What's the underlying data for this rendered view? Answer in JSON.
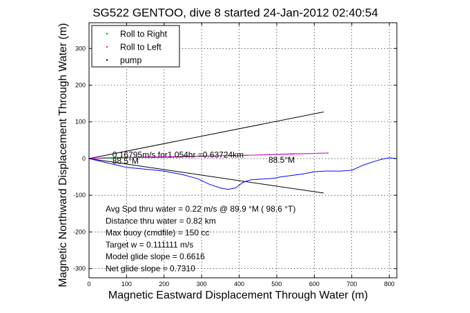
{
  "chart_data": {
    "type": "line",
    "title": "SG522 GENTOO, dive 8 started 24-Jan-2012 02:40:54",
    "xlabel": "Magnetic Eastward Displacement Through Water (m)",
    "ylabel": "Magnetic Northward Displacement Through Water (m)",
    "xlim": [
      0,
      820
    ],
    "ylim": [
      -325,
      370
    ],
    "xticks": [
      0,
      100,
      200,
      300,
      400,
      500,
      600,
      700,
      800
    ],
    "yticks": [
      -300,
      -200,
      -100,
      0,
      100,
      200,
      300
    ],
    "grid": true,
    "legend_position": "top-left",
    "colors": {
      "roll_right": "#00a000",
      "roll_left": "#ff00ff",
      "pump": "#000000",
      "track": "#0000ff",
      "cone": "#000000"
    },
    "legend": [
      {
        "label": "Roll to Right",
        "color": "#00a000"
      },
      {
        "label": "Roll to Left",
        "color": "#ff00ff"
      },
      {
        "label": "pump",
        "color": "#000000"
      }
    ],
    "series": [
      {
        "name": "Roll to Left",
        "color": "#ff00ff",
        "x": [
          0,
          40,
          90,
          150,
          220,
          300,
          380,
          460,
          540,
          600,
          636
        ],
        "y": [
          0,
          2,
          3,
          4,
          5,
          7,
          8,
          10,
          12,
          14,
          15
        ]
      },
      {
        "name": "Roll to Right",
        "color": "#00a000",
        "x": [
          0,
          60,
          120,
          180,
          240,
          300,
          360,
          420,
          480,
          540,
          600,
          636
        ],
        "y": [
          0,
          1,
          3,
          3,
          4,
          6,
          8,
          9,
          11,
          13,
          14,
          15
        ]
      },
      {
        "color": "#0000ff",
        "x": [
          0,
          20,
          50,
          75,
          100,
          140,
          200,
          250,
          290,
          320,
          350,
          370,
          390,
          410,
          430,
          460,
          490,
          510,
          540,
          570,
          600,
          630,
          670,
          700,
          730,
          760,
          780,
          800,
          820
        ],
        "y": [
          0,
          -5,
          -12,
          -18,
          -24,
          -28,
          -34,
          -44,
          -55,
          -70,
          -80,
          -84,
          -80,
          -65,
          -58,
          -56,
          -54,
          -50,
          -46,
          -42,
          -36,
          -34,
          -34,
          -32,
          -18,
          -8,
          -2,
          2,
          0
        ]
      },
      {
        "color": "#000000",
        "x": [
          0,
          625
        ],
        "y": [
          0,
          127
        ]
      },
      {
        "color": "#000000",
        "x": [
          0,
          625
        ],
        "y": [
          0,
          -94
        ]
      }
    ],
    "annotations": [
      {
        "text": "0.16795m/s for1.054hr =0.63724km",
        "x": 62,
        "y": 10
      },
      {
        "text": "88.5°M",
        "x": 62,
        "y": -7
      },
      {
        "text": "88.5°M",
        "x": 478,
        "y": -4
      }
    ],
    "stats": [
      "Avg Spd thru water =  0.22 m/s @  89.9   °M ( 98.6 °T)",
      "Distance thru water =  0.82 km",
      "Max buoy (cmdfile) = 150 cc",
      "Target w = 0.111111 m/s",
      "Model glide slope = 0.6616",
      "Net glide slope = 0.7310"
    ]
  }
}
